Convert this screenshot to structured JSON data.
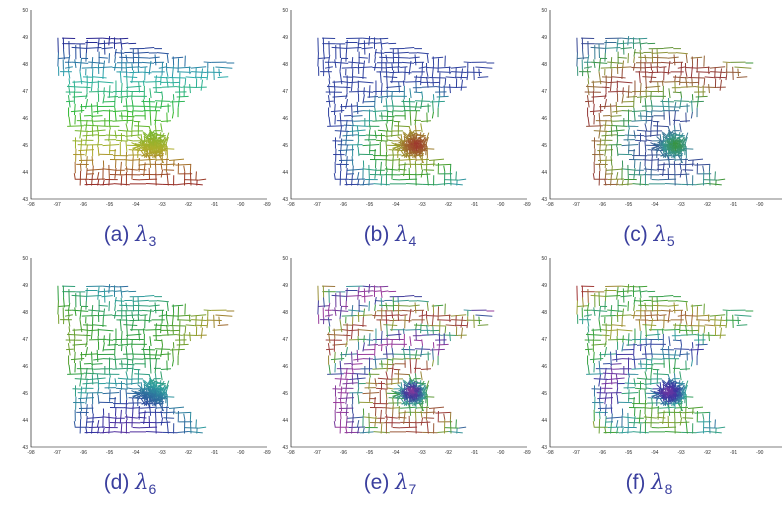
{
  "figure": {
    "panels": [
      {
        "label": "(a)",
        "symbol": "λ",
        "index": "3"
      },
      {
        "label": "(b)",
        "symbol": "λ",
        "index": "4"
      },
      {
        "label": "(c)",
        "symbol": "λ",
        "index": "5"
      },
      {
        "label": "(d)",
        "symbol": "λ",
        "index": "6"
      },
      {
        "label": "(e)",
        "symbol": "λ",
        "index": "7"
      },
      {
        "label": "(f)",
        "symbol": "λ",
        "index": "8"
      }
    ],
    "x_ticks": [
      "-98",
      "-97",
      "-96",
      "-95",
      "-94",
      "-93",
      "-92",
      "-91",
      "-90",
      "-89"
    ],
    "y_ticks": [
      "43",
      "44",
      "45",
      "46",
      "47",
      "48",
      "49",
      "50"
    ],
    "xlim": [
      -98,
      -89
    ],
    "ylim": [
      43,
      50
    ],
    "caption_color": "#3a3f9e"
  }
}
